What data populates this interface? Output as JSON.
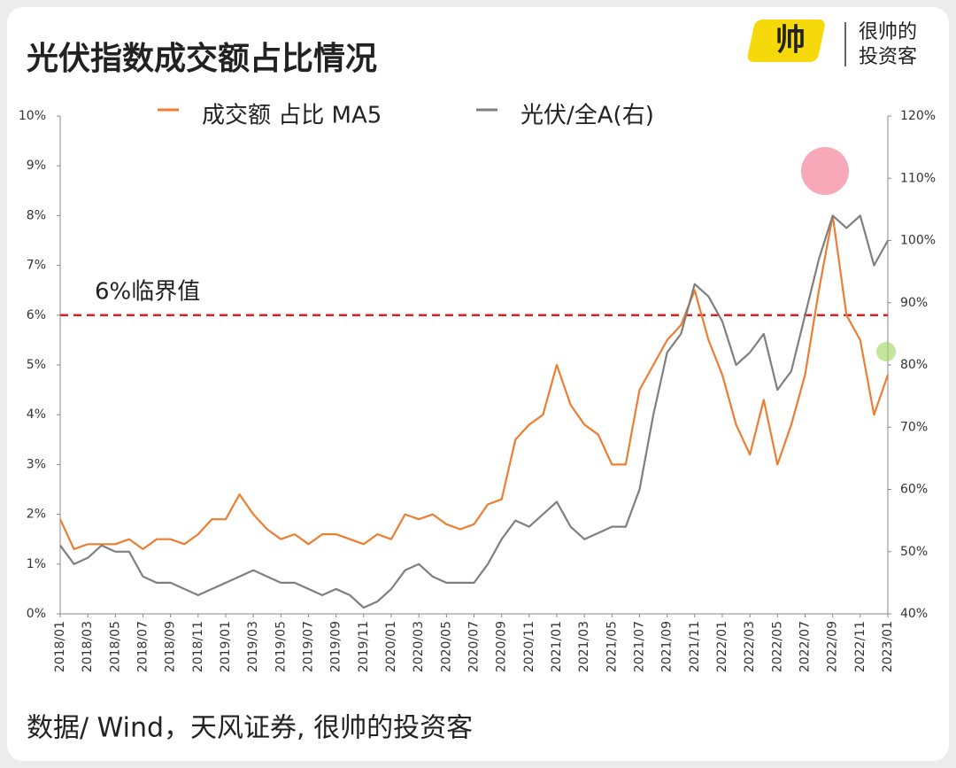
{
  "chart_data": {
    "type": "line",
    "title": "光伏指数成交额占比情况",
    "brand": {
      "logo": "帅",
      "line1": "很帅的",
      "line2": "投资客"
    },
    "source": "数据/ Wind，天风证券, 很帅的投资客",
    "categories": [
      "2018/01",
      null,
      "2018/03",
      null,
      "2018/05",
      null,
      "2018/07",
      null,
      "2018/09",
      null,
      "2018/11",
      null,
      "2019/01",
      null,
      "2019/03",
      null,
      "2019/05",
      null,
      "2019/07",
      null,
      "2019/09",
      null,
      "2019/11",
      null,
      "2020/01",
      null,
      "2020/03",
      null,
      "2020/05",
      null,
      "2020/07",
      null,
      "2020/09",
      null,
      "2020/11",
      null,
      "2021/01",
      null,
      "2021/03",
      null,
      "2021/05",
      null,
      "2021/07",
      null,
      "2021/09",
      null,
      "2021/11",
      null,
      "2022/01",
      null,
      "2022/03",
      null,
      "2022/05",
      null,
      "2022/07",
      null,
      "2022/09",
      null,
      "2022/11",
      null,
      "2023/01"
    ],
    "series": [
      {
        "name": "成交额 占比 MA5",
        "color": "#ed7d31",
        "axis": "y",
        "values": [
          1.9,
          1.3,
          1.4,
          1.4,
          1.4,
          1.5,
          1.3,
          1.5,
          1.5,
          1.4,
          1.6,
          1.9,
          1.9,
          2.4,
          2.0,
          1.7,
          1.5,
          1.6,
          1.4,
          1.6,
          1.6,
          1.5,
          1.4,
          1.6,
          1.5,
          2.0,
          1.9,
          2.0,
          1.8,
          1.7,
          1.8,
          2.2,
          2.3,
          3.5,
          3.8,
          4.0,
          5.0,
          4.2,
          3.8,
          3.6,
          3.0,
          3.0,
          4.5,
          5.0,
          5.5,
          5.8,
          6.5,
          5.5,
          4.8,
          3.8,
          3.2,
          4.3,
          3.0,
          3.8,
          4.8,
          6.5,
          8.0,
          6.0,
          5.5,
          4.0,
          4.8
        ]
      },
      {
        "name": "光伏/全A(右)",
        "color": "#7f7f7f",
        "axis": "y2",
        "values": [
          51,
          48,
          49,
          51,
          50,
          50,
          46,
          45,
          45,
          44,
          43,
          44,
          45,
          46,
          47,
          46,
          45,
          45,
          44,
          43,
          44,
          43,
          41,
          42,
          44,
          47,
          48,
          46,
          45,
          45,
          45,
          48,
          52,
          55,
          54,
          56,
          58,
          54,
          52,
          53,
          54,
          54,
          60,
          72,
          82,
          85,
          93,
          91,
          87,
          80,
          82,
          85,
          76,
          79,
          88,
          97,
          104,
          102,
          104,
          96,
          100
        ]
      }
    ],
    "ylim": [
      0,
      10
    ],
    "yticks": [
      {
        "value": 0,
        "label": "0%"
      },
      {
        "value": 1,
        "label": "1%"
      },
      {
        "value": 2,
        "label": "2%"
      },
      {
        "value": 3,
        "label": "3%"
      },
      {
        "value": 4,
        "label": "4%"
      },
      {
        "value": 5,
        "label": "5%"
      },
      {
        "value": 6,
        "label": "6%"
      },
      {
        "value": 7,
        "label": "7%"
      },
      {
        "value": 8,
        "label": "8%"
      },
      {
        "value": 9,
        "label": "9%"
      },
      {
        "value": 10,
        "label": "10%"
      }
    ],
    "y2lim": [
      40,
      120
    ],
    "y2ticks": [
      {
        "value": 40,
        "label": "40%"
      },
      {
        "value": 50,
        "label": "50%"
      },
      {
        "value": 60,
        "label": "60%"
      },
      {
        "value": 70,
        "label": "70%"
      },
      {
        "value": 80,
        "label": "80%"
      },
      {
        "value": 90,
        "label": "90%"
      },
      {
        "value": 100,
        "label": "100%"
      },
      {
        "value": 110,
        "label": "110%"
      },
      {
        "value": 120,
        "label": "120%"
      }
    ],
    "threshold": {
      "value": 6,
      "label": "6%临界值",
      "color": "#e02020"
    },
    "legend": "top"
  }
}
